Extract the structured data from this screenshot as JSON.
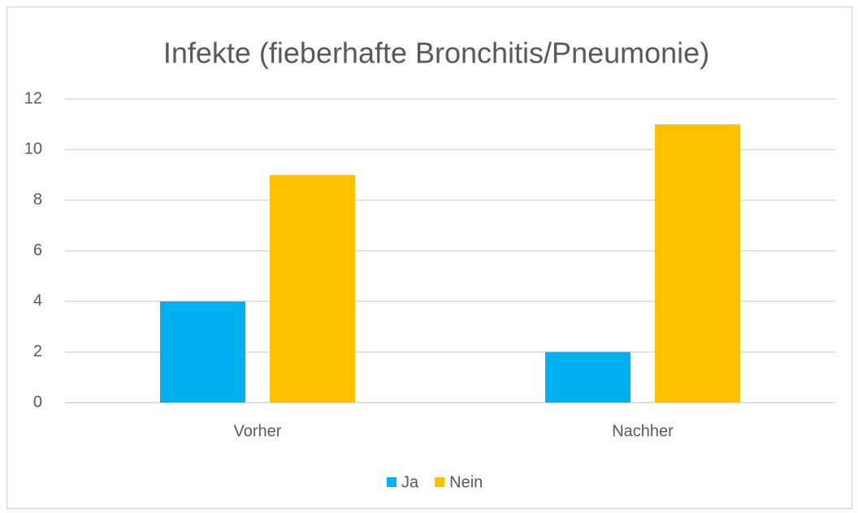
{
  "chart_data": {
    "type": "bar",
    "title": "Infekte (fieberhafte Bronchitis/Pneumonie)",
    "categories": [
      "Vorher",
      "Nachher"
    ],
    "series": [
      {
        "name": "Ja",
        "color": "#00b0f0",
        "values": [
          4,
          2
        ]
      },
      {
        "name": "Nein",
        "color": "#ffc000",
        "values": [
          9,
          11
        ]
      }
    ],
    "ylim": [
      0,
      12
    ],
    "yticks": [
      0,
      2,
      4,
      6,
      8,
      10,
      12
    ],
    "grid": true,
    "legend": "bottom"
  }
}
